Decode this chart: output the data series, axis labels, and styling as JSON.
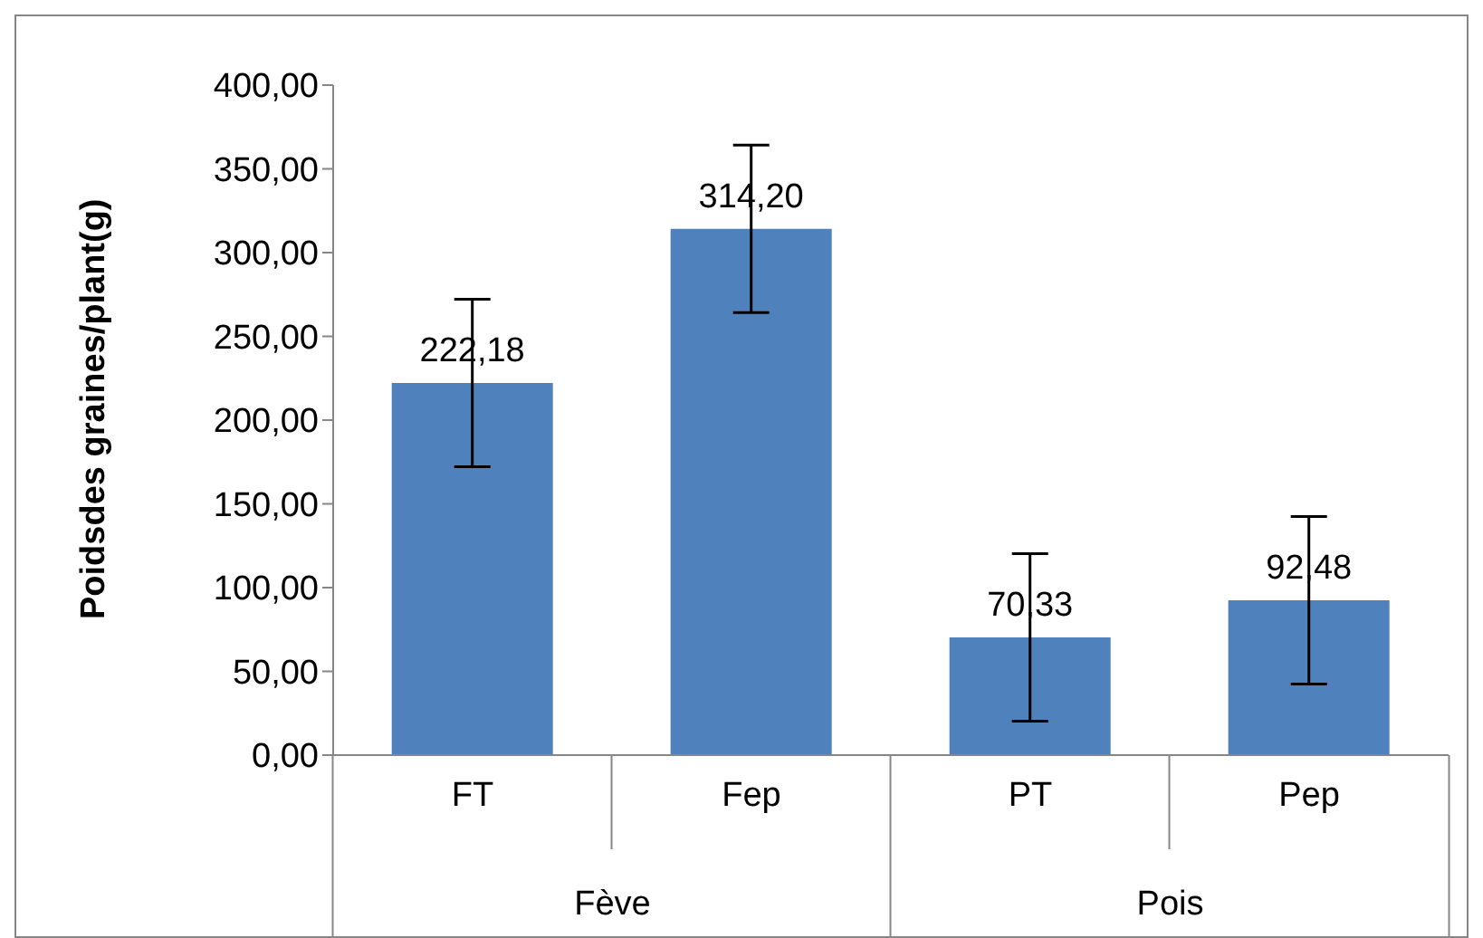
{
  "chart_data": {
    "type": "bar",
    "ylabel": "Poidsdes graines/plant(g)",
    "categories": [
      "FT",
      "Fep",
      "PT",
      "Pep"
    ],
    "values": [
      222.18,
      314.2,
      70.33,
      92.48
    ],
    "value_labels": [
      "222,18",
      "314,20",
      "70,33",
      "92,48"
    ],
    "errors": [
      50,
      50,
      50,
      50
    ],
    "color": "#4f81bd",
    "annotations": [
      "Fève",
      "Pois"
    ],
    "ylim": [
      0,
      400
    ],
    "yticks": [
      {
        "value": 0,
        "label": "0,00"
      },
      {
        "value": 50,
        "label": "50,00"
      },
      {
        "value": 100,
        "label": "100,00"
      },
      {
        "value": 150,
        "label": "150,00"
      },
      {
        "value": 200,
        "label": "200,00"
      },
      {
        "value": 250,
        "label": "250,00"
      },
      {
        "value": 300,
        "label": "300,00"
      },
      {
        "value": 350,
        "label": "350,00"
      },
      {
        "value": 400,
        "label": "400,00"
      }
    ],
    "grid": false,
    "legend": false
  }
}
